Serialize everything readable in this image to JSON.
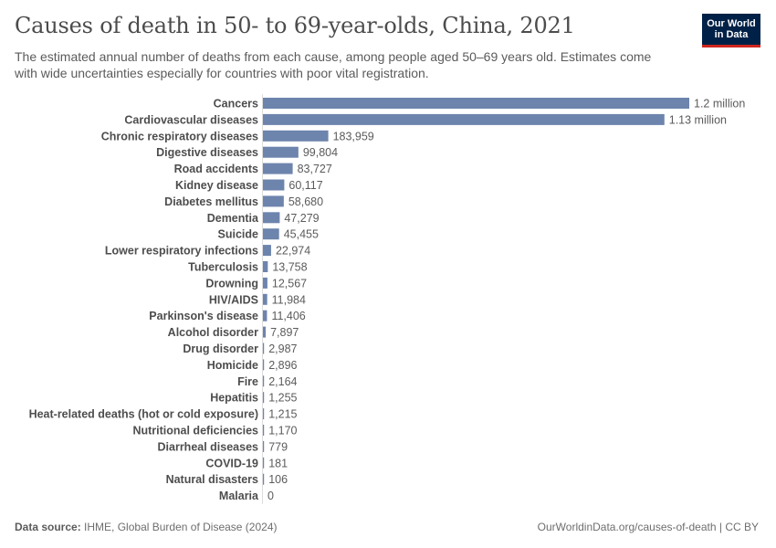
{
  "header": {
    "title": "Causes of death in 50- to 69-year-olds, China, 2021",
    "subtitle": "The estimated annual number of deaths from each cause, among people aged 50–69 years old. Estimates come with wide uncertainties especially for countries with poor vital registration."
  },
  "logo": {
    "line1": "Our World",
    "line2": "in Data"
  },
  "footer": {
    "source_label": "Data source:",
    "source_text": "IHME, Global Burden of Disease (2024)",
    "url_text": "OurWorldinData.org/causes-of-death | CC BY"
  },
  "colors": {
    "bar": "#6d84ad",
    "axis": "#dddddd",
    "logo_bg": "#002147",
    "logo_accent": "#ce261e"
  },
  "chart_data": {
    "type": "bar",
    "orientation": "horizontal",
    "title": "Causes of death in 50- to 69-year-olds, China, 2021",
    "categories": [
      "Cancers",
      "Cardiovascular diseases",
      "Chronic respiratory diseases",
      "Digestive diseases",
      "Road accidents",
      "Kidney disease",
      "Diabetes mellitus",
      "Dementia",
      "Suicide",
      "Lower respiratory infections",
      "Tuberculosis",
      "Drowning",
      "HIV/AIDS",
      "Parkinson's disease",
      "Alcohol disorder",
      "Drug disorder",
      "Homicide",
      "Fire",
      "Hepatitis",
      "Heat-related deaths (hot or cold exposure)",
      "Nutritional deficiencies",
      "Diarrheal diseases",
      "COVID-19",
      "Natural disasters",
      "Malaria"
    ],
    "values": [
      1200000,
      1130000,
      183959,
      99804,
      83727,
      60117,
      58680,
      47279,
      45455,
      22974,
      13758,
      12567,
      11984,
      11406,
      7897,
      2987,
      2896,
      2164,
      1255,
      1215,
      1170,
      779,
      181,
      106,
      0
    ],
    "value_labels": [
      "1.2 million",
      "1.13 million",
      "183,959",
      "99,804",
      "83,727",
      "60,117",
      "58,680",
      "47,279",
      "45,455",
      "22,974",
      "13,758",
      "12,567",
      "11,984",
      "11,406",
      "7,897",
      "2,987",
      "2,896",
      "2,164",
      "1,255",
      "1,215",
      "1,170",
      "779",
      "181",
      "106",
      "0"
    ],
    "xlim": [
      0,
      1200000
    ],
    "grid": false,
    "legend": "none"
  }
}
